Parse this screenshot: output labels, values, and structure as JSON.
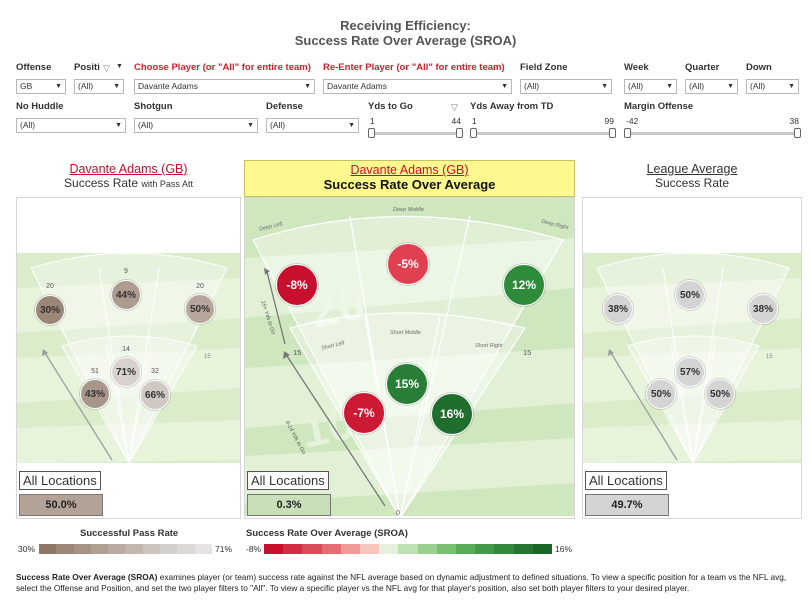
{
  "title": {
    "line1": "Receiving Efficiency:",
    "line2": "Success Rate Over Average (SROA)"
  },
  "filters_row1": [
    {
      "label": "Offense",
      "value": "GB",
      "red": false
    },
    {
      "label": "Positi",
      "value": "(All)",
      "red": false
    },
    {
      "label": "Choose Player (or \"All\" for entire team)",
      "value": "Davante Adams",
      "red": true
    },
    {
      "label": "Re-Enter Player (or \"All\" for entire team)",
      "value": "Davante Adams",
      "red": true
    },
    {
      "label": "Field Zone",
      "value": "(All)",
      "red": false
    },
    {
      "label": "Week",
      "value": "(All)",
      "red": false
    },
    {
      "label": "Quarter",
      "value": "(All)",
      "red": false
    },
    {
      "label": "Down",
      "value": "(All)",
      "red": false
    }
  ],
  "filters_row2": [
    {
      "label": "No Huddle",
      "value": "(All)"
    },
    {
      "label": "Shotgun",
      "value": "(All)"
    },
    {
      "label": "Defense",
      "value": "(All)"
    }
  ],
  "sliders": [
    {
      "label": "Yds to Go",
      "min": "1",
      "max": "44"
    },
    {
      "label": "Yds Away from TD",
      "min": "1",
      "max": "99"
    },
    {
      "label": "Margin Offense",
      "min": "-42",
      "max": "38"
    }
  ],
  "panels": {
    "left": {
      "player": "Davante Adams (GB)",
      "subtitle": "Success Rate",
      "subtitle_small": "with Pass Att",
      "all_locations": "All Locations",
      "summary": "50.0%",
      "bubbles": [
        {
          "label": "30%",
          "count": "20",
          "color": "#9b8677"
        },
        {
          "label": "44%",
          "count": "9",
          "color": "#ae9b8f"
        },
        {
          "label": "50%",
          "count": "20",
          "color": "#b6a69b"
        },
        {
          "label": "71%",
          "count": "14",
          "color": "#d8d2cf"
        },
        {
          "label": "43%",
          "count": "51",
          "color": "#a8968a"
        },
        {
          "label": "66%",
          "count": "32",
          "color": "#cfc8c3"
        }
      ]
    },
    "center": {
      "player": "Davante Adams (GB)",
      "subtitle": "Success Rate Over Average",
      "all_locations": "All Locations",
      "summary": "0.3%",
      "zones": [
        "Deep Left",
        "Deep Middle",
        "Deep Right",
        "Short Left",
        "Short Middle",
        "Short Right"
      ],
      "side_labels": [
        "0-14 Yds to Go",
        "15+ Yds to Go"
      ],
      "yard_marks": [
        "15",
        "15",
        "0"
      ],
      "bubbles": [
        {
          "label": "-8%",
          "color": "#c8102e"
        },
        {
          "label": "-5%",
          "color": "#e04050"
        },
        {
          "label": "12%",
          "color": "#2e8b3a"
        },
        {
          "label": "15%",
          "color": "#2a7d36"
        },
        {
          "label": "-7%",
          "color": "#cc1a34"
        },
        {
          "label": "16%",
          "color": "#1f6e2e"
        }
      ]
    },
    "right": {
      "title": "League Average",
      "subtitle": "Success Rate",
      "all_locations": "All Locations",
      "summary": "49.7%",
      "bubbles": [
        {
          "label": "38%",
          "color": "#d4d4d4"
        },
        {
          "label": "50%",
          "color": "#d4d4d4"
        },
        {
          "label": "38%",
          "color": "#d4d4d4"
        },
        {
          "label": "57%",
          "color": "#d4d4d4"
        },
        {
          "label": "50%",
          "color": "#d4d4d4"
        },
        {
          "label": "50%",
          "color": "#d4d4d4"
        }
      ]
    }
  },
  "legends": {
    "success": {
      "title": "Successful Pass Rate",
      "min": "30%",
      "max": "71%",
      "colors": [
        "#8f7868",
        "#9b8677",
        "#a69384",
        "#b0a092",
        "#b9aba0",
        "#c2b7ae",
        "#cbc3bc",
        "#d4cfca",
        "#dcd9d6",
        "#e6e4e2"
      ]
    },
    "sroa": {
      "title": "Success Rate Over Average (SROA)",
      "min": "-8%",
      "max": "16%",
      "colors": [
        "#c8102e",
        "#d12d43",
        "#db4b58",
        "#e46d72",
        "#ee9a96",
        "#f6c6bd",
        "#e6f0dc",
        "#bfe0b5",
        "#9ad08e",
        "#78bf70",
        "#5aac5a",
        "#449a48",
        "#33883b",
        "#25762f",
        "#1b6526"
      ]
    }
  },
  "footnote": {
    "bold": "Success Rate Over Average (SROA)",
    "text": " examines player (or team) success rate against the NFL average based on dynamic adjustment to defined situations. To view a specific position for a team vs the NFL avg, select the Offense and Position, and set the two player filters to \"All\". To view a specific player vs the NFL avg for that player's position, also set both player filters to your desired player."
  }
}
